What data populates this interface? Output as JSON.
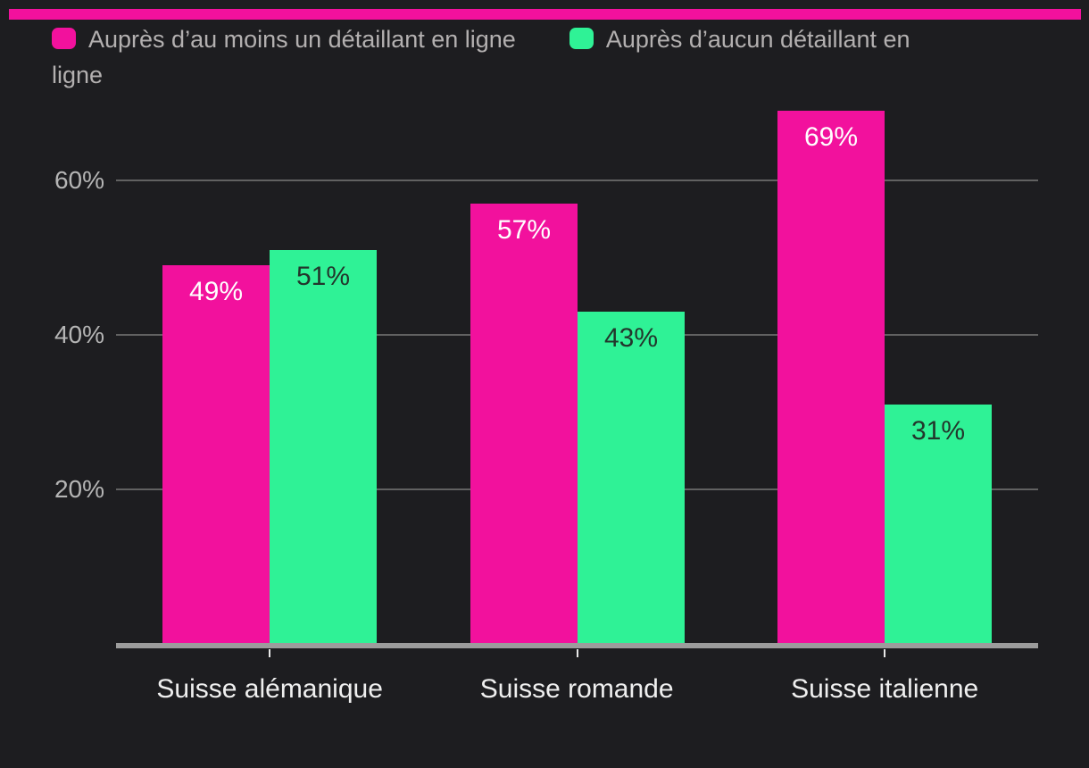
{
  "background_color": "#1d1d20",
  "brand_stripe_color": "#f2119d",
  "chart_data": {
    "type": "bar",
    "title": "",
    "categories": [
      "Suisse alémanique",
      "Suisse romande",
      "Suisse italienne"
    ],
    "series": [
      {
        "name": "Auprès d’au moins un détaillant en ligne",
        "display_lines": [
          "Auprès d’au moins un détaillant en ligne"
        ],
        "color": "#f2119d",
        "value_label_color": "#ffffff",
        "values": [
          49,
          57,
          69
        ],
        "value_labels": [
          "49%",
          "57%",
          "69%"
        ]
      },
      {
        "name": "Auprès d’aucun détaillant en ligne",
        "display_lines": [
          "Auprès d’aucun détaillant en",
          "ligne"
        ],
        "color": "#2ff296",
        "value_label_color": "#23362c",
        "values": [
          51,
          43,
          31
        ],
        "value_labels": [
          "51%",
          "43%",
          "31%"
        ]
      }
    ],
    "y_axis": {
      "ticks": [
        {
          "value": 20,
          "label": "20%"
        },
        {
          "value": 40,
          "label": "40%"
        },
        {
          "value": 60,
          "label": "60%"
        }
      ],
      "range": [
        0,
        71
      ],
      "grid": true
    },
    "x_axis": {
      "baseline": true,
      "tick_marks": true
    },
    "legend_position": "top-left",
    "grid_color": "#616161",
    "axis_line_color": "#9c9c9c"
  }
}
